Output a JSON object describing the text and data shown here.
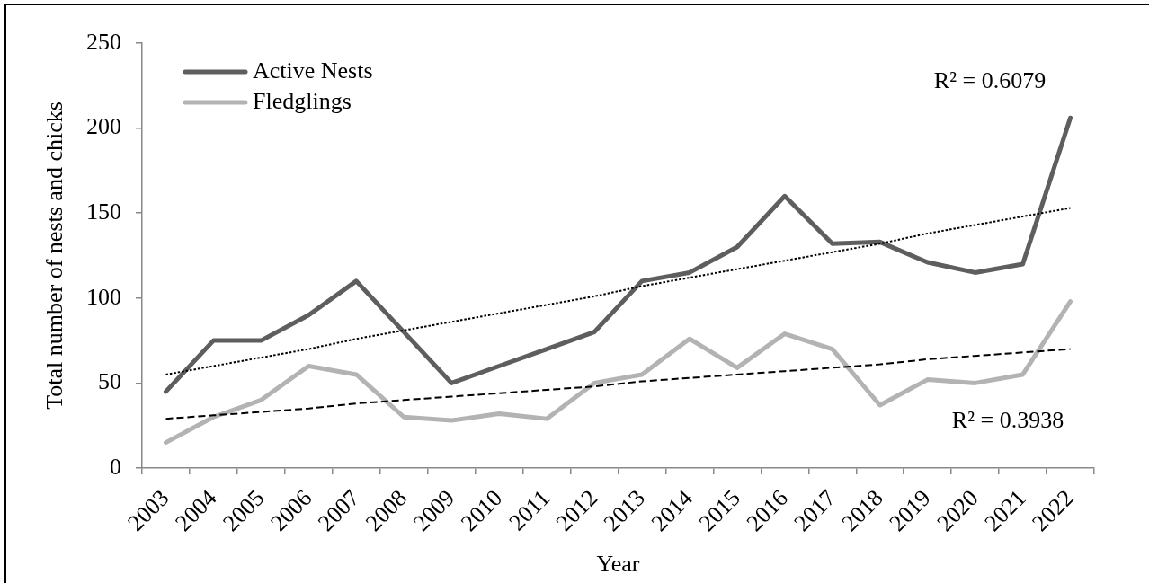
{
  "chart_data": {
    "type": "line",
    "xlabel": "Year",
    "ylabel": "Total number of nests and chicks",
    "categories": [
      "2003",
      "2004",
      "2005",
      "2006",
      "2007",
      "2008",
      "2009",
      "2010",
      "2011",
      "2012",
      "2013",
      "2014",
      "2015",
      "2016",
      "2017",
      "2018",
      "2019",
      "2020",
      "2021",
      "2022"
    ],
    "series": [
      {
        "name": "Active Nests",
        "color": "#5e5e5e",
        "values": [
          45,
          75,
          75,
          90,
          110,
          80,
          50,
          60,
          70,
          80,
          110,
          115,
          130,
          160,
          132,
          133,
          121,
          115,
          120,
          206
        ]
      },
      {
        "name": "Fledglings",
        "color": "#b3b3b3",
        "values": [
          15,
          30,
          40,
          60,
          55,
          30,
          28,
          32,
          29,
          50,
          55,
          76,
          59,
          79,
          70,
          37,
          52,
          50,
          55,
          98
        ]
      },
      {
        "type": "line",
        "color": "#000000",
        "line_style": "dotted",
        "values": [
          55,
          60,
          65,
          70,
          76,
          81,
          86,
          91,
          96,
          101,
          107,
          112,
          117,
          122,
          127,
          132,
          138,
          143,
          148,
          153
        ]
      },
      {
        "type": "line",
        "color": "#000000",
        "line_style": "dashed",
        "values": [
          29,
          31,
          33,
          35,
          38,
          40,
          42,
          44,
          46,
          48,
          51,
          53,
          55,
          57,
          59,
          61,
          64,
          66,
          68,
          70
        ]
      }
    ],
    "ylim": [
      0,
      250
    ],
    "yticks": [
      0,
      50,
      100,
      150,
      200,
      250
    ],
    "legend": "top left",
    "line_style": "solid",
    "annotations": [
      "R² = 0.6079",
      "R² = 0.3938"
    ]
  }
}
